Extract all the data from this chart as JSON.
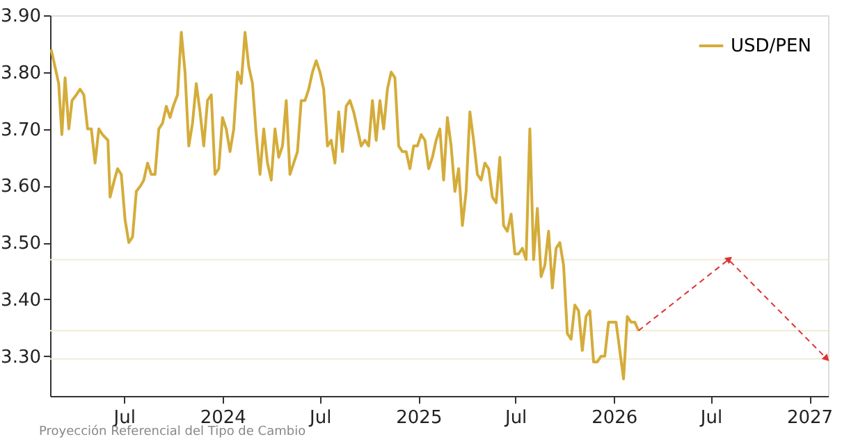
{
  "chart_data": {
    "type": "line",
    "annotations": [
      "Proyección Referencial del Tipo de Cambio"
    ],
    "legend": "top right",
    "xlim": [
      "2023-02-13",
      "2027-02-05"
    ],
    "xticks": [
      {
        "value": "2023-07-01",
        "label": "Jul"
      },
      {
        "value": "2024-01-01",
        "label": "2024"
      },
      {
        "value": "2024-07-01",
        "label": "Jul"
      },
      {
        "value": "2025-01-01",
        "label": "2025"
      },
      {
        "value": "2025-07-01",
        "label": "Jul"
      },
      {
        "value": "2026-01-01",
        "label": "2026"
      },
      {
        "value": "2026-07-01",
        "label": "Jul"
      },
      {
        "value": "2027-01-01",
        "label": "2027"
      }
    ],
    "ylim": [
      3.23,
      3.9
    ],
    "yticks": [
      {
        "value": 3.3,
        "label": "3.30"
      },
      {
        "value": 3.4,
        "label": "3.40"
      },
      {
        "value": 3.5,
        "label": "3.50"
      },
      {
        "value": 3.6,
        "label": "3.60"
      },
      {
        "value": 3.7,
        "label": "3.70"
      },
      {
        "value": 3.8,
        "label": "3.80"
      },
      {
        "value": 3.9,
        "label": "3.90"
      }
    ],
    "ref_lines": [
      {
        "axis": "y",
        "value": 3.47,
        "color": "#f1ecd4"
      },
      {
        "axis": "y",
        "value": 3.345,
        "color": "#f1ecd4"
      },
      {
        "axis": "y",
        "value": 3.295,
        "color": "#f1ecd4"
      }
    ],
    "series": [
      {
        "name": "USD/PEN",
        "color": "#d4ac3a",
        "line_style": "solid",
        "x": [
          "2023-02-15",
          "2023-03-01",
          "2023-03-07",
          "2023-03-13",
          "2023-03-20",
          "2023-03-26",
          "2023-04-03",
          "2023-04-10",
          "2023-04-17",
          "2023-04-24",
          "2023-05-01",
          "2023-05-08",
          "2023-05-15",
          "2023-05-22",
          "2023-06-01",
          "2023-06-05",
          "2023-06-13",
          "2023-06-19",
          "2023-06-26",
          "2023-07-03",
          "2023-07-10",
          "2023-07-17",
          "2023-07-24",
          "2023-08-01",
          "2023-08-07",
          "2023-08-14",
          "2023-08-21",
          "2023-08-28",
          "2023-09-04",
          "2023-09-11",
          "2023-09-18",
          "2023-09-25",
          "2023-10-01",
          "2023-10-09",
          "2023-10-16",
          "2023-10-23",
          "2023-10-30",
          "2023-11-06",
          "2023-11-13",
          "2023-11-20",
          "2023-11-27",
          "2023-12-04",
          "2023-12-11",
          "2023-12-18",
          "2023-12-25",
          "2024-01-01",
          "2024-01-08",
          "2024-01-15",
          "2024-01-22",
          "2024-01-29",
          "2024-02-05",
          "2024-02-12",
          "2024-02-19",
          "2024-02-26",
          "2024-03-04",
          "2024-03-11",
          "2024-03-18",
          "2024-03-25",
          "2024-04-01",
          "2024-04-08",
          "2024-04-15",
          "2024-04-22",
          "2024-04-29",
          "2024-05-06",
          "2024-05-13",
          "2024-05-20",
          "2024-05-27",
          "2024-06-03",
          "2024-06-10",
          "2024-06-17",
          "2024-06-24",
          "2024-07-01",
          "2024-07-08",
          "2024-07-15",
          "2024-07-22",
          "2024-07-29",
          "2024-08-05",
          "2024-08-12",
          "2024-08-19",
          "2024-08-26",
          "2024-09-02",
          "2024-09-09",
          "2024-09-16",
          "2024-09-23",
          "2024-09-30",
          "2024-10-07",
          "2024-10-14",
          "2024-10-21",
          "2024-10-28",
          "2024-11-04",
          "2024-11-11",
          "2024-11-18",
          "2024-11-25",
          "2024-12-02",
          "2024-12-09",
          "2024-12-16",
          "2024-12-23",
          "2024-12-30",
          "2025-01-06",
          "2025-01-13",
          "2025-01-20",
          "2025-01-27",
          "2025-02-03",
          "2025-02-10",
          "2025-02-17",
          "2025-02-24",
          "2025-03-03",
          "2025-03-10",
          "2025-03-17",
          "2025-03-24",
          "2025-03-31",
          "2025-04-07",
          "2025-04-14",
          "2025-04-21",
          "2025-04-28",
          "2025-05-05",
          "2025-05-12",
          "2025-05-19",
          "2025-05-26",
          "2025-06-02",
          "2025-06-09",
          "2025-06-16",
          "2025-06-23",
          "2025-06-30",
          "2025-07-07",
          "2025-07-14",
          "2025-07-21",
          "2025-07-28",
          "2025-08-04",
          "2025-08-11",
          "2025-08-18",
          "2025-08-25",
          "2025-09-01",
          "2025-09-08",
          "2025-09-15",
          "2025-09-22",
          "2025-09-29",
          "2025-10-06",
          "2025-10-13",
          "2025-10-20",
          "2025-10-27",
          "2025-11-03",
          "2025-11-10",
          "2025-11-17",
          "2025-11-24",
          "2025-12-01",
          "2025-12-08",
          "2025-12-15",
          "2025-12-22",
          "2025-12-29",
          "2026-01-05",
          "2026-01-12",
          "2026-01-19",
          "2026-01-26",
          "2026-02-02",
          "2026-02-09",
          "2026-02-16"
        ],
        "values": [
          3.84,
          3.78,
          3.69,
          3.79,
          3.7,
          3.75,
          3.76,
          3.77,
          3.76,
          3.7,
          3.7,
          3.64,
          3.7,
          3.69,
          3.68,
          3.58,
          3.61,
          3.63,
          3.62,
          3.54,
          3.5,
          3.51,
          3.59,
          3.6,
          3.61,
          3.64,
          3.62,
          3.62,
          3.7,
          3.71,
          3.74,
          3.72,
          3.74,
          3.76,
          3.87,
          3.8,
          3.67,
          3.71,
          3.78,
          3.73,
          3.67,
          3.75,
          3.76,
          3.62,
          3.63,
          3.72,
          3.7,
          3.66,
          3.7,
          3.8,
          3.78,
          3.87,
          3.81,
          3.78,
          3.69,
          3.62,
          3.7,
          3.64,
          3.61,
          3.7,
          3.65,
          3.67,
          3.75,
          3.62,
          3.64,
          3.66,
          3.75,
          3.75,
          3.77,
          3.8,
          3.82,
          3.8,
          3.77,
          3.67,
          3.68,
          3.64,
          3.73,
          3.66,
          3.74,
          3.75,
          3.73,
          3.7,
          3.67,
          3.68,
          3.67,
          3.75,
          3.68,
          3.75,
          3.7,
          3.77,
          3.8,
          3.79,
          3.67,
          3.66,
          3.66,
          3.63,
          3.67,
          3.67,
          3.69,
          3.68,
          3.63,
          3.65,
          3.68,
          3.7,
          3.61,
          3.72,
          3.67,
          3.59,
          3.63,
          3.53,
          3.59,
          3.73,
          3.68,
          3.62,
          3.61,
          3.64,
          3.63,
          3.58,
          3.57,
          3.65,
          3.53,
          3.52,
          3.55,
          3.48,
          3.48,
          3.49,
          3.47,
          3.7,
          3.47,
          3.56,
          3.44,
          3.46,
          3.52,
          3.42,
          3.49,
          3.5,
          3.46,
          3.34,
          3.33,
          3.39,
          3.38,
          3.31,
          3.37,
          3.38,
          3.29,
          3.29,
          3.3,
          3.3,
          3.36,
          3.36,
          3.36,
          3.31,
          3.26,
          3.37,
          3.36,
          3.36,
          3.345
        ]
      },
      {
        "color": "#e03030",
        "line_style": "dashed",
        "x": [
          "2026-02-16",
          "2026-08-03",
          "2027-02-01"
        ],
        "values": [
          3.345,
          3.47,
          3.297
        ]
      }
    ]
  }
}
